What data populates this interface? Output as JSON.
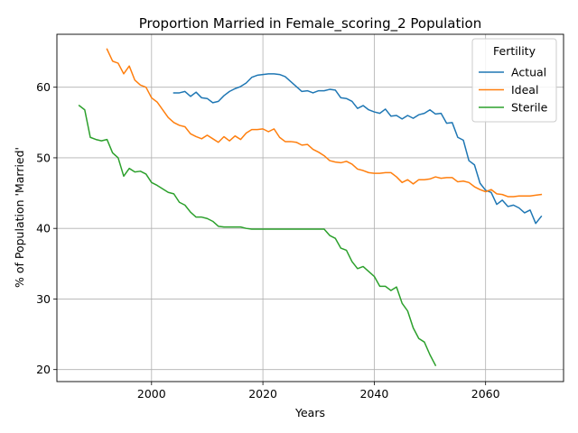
{
  "chart_data": {
    "type": "line",
    "title": "Proportion Married in Female_scoring_2 Population",
    "xlabel": "Years",
    "ylabel": "% of Population 'Married'",
    "xlim": [
      1983,
      2074
    ],
    "ylim": [
      18.3,
      67.5
    ],
    "xticks": [
      2000,
      2020,
      2040,
      2060
    ],
    "yticks": [
      20,
      30,
      40,
      50,
      60
    ],
    "grid": true,
    "legend": {
      "title": "Fertility",
      "placement": "top-right"
    },
    "series": [
      {
        "name": "Actual",
        "color": "#1f77b4",
        "x": [
          2004,
          2005,
          2006,
          2007,
          2008,
          2009,
          2010,
          2011,
          2012,
          2013,
          2014,
          2015,
          2016,
          2017,
          2018,
          2019,
          2020,
          2021,
          2022,
          2023,
          2024,
          2025,
          2026,
          2027,
          2028,
          2029,
          2030,
          2031,
          2032,
          2033,
          2034,
          2035,
          2036,
          2037,
          2038,
          2039,
          2040,
          2041,
          2042,
          2043,
          2044,
          2045,
          2046,
          2047,
          2048,
          2049,
          2050,
          2051,
          2052,
          2053,
          2054,
          2055,
          2056,
          2057,
          2058,
          2059,
          2060,
          2061,
          2062,
          2063,
          2064,
          2065,
          2066,
          2067,
          2068,
          2069,
          2070
        ],
        "y": [
          59.2,
          59.2,
          59.4,
          58.7,
          59.3,
          58.5,
          58.4,
          57.8,
          58.0,
          58.8,
          59.4,
          59.8,
          60.1,
          60.6,
          61.4,
          61.7,
          61.8,
          61.9,
          61.9,
          61.8,
          61.5,
          60.8,
          60.1,
          59.4,
          59.5,
          59.2,
          59.5,
          59.5,
          59.7,
          59.6,
          58.5,
          58.4,
          58.0,
          57.0,
          57.4,
          56.8,
          56.5,
          56.3,
          56.9,
          55.9,
          56.0,
          55.5,
          56.0,
          55.6,
          56.1,
          56.3,
          56.8,
          56.2,
          56.3,
          54.9,
          55.0,
          52.9,
          52.5,
          49.6,
          49.0,
          46.4,
          45.4,
          45.1,
          43.4,
          44.0,
          43.1,
          43.3,
          42.9,
          42.2,
          42.6,
          40.7,
          41.7
        ]
      },
      {
        "name": "Ideal",
        "color": "#ff7f0e",
        "x": [
          1992,
          1993,
          1994,
          1995,
          1996,
          1997,
          1998,
          1999,
          2000,
          2001,
          2002,
          2003,
          2004,
          2005,
          2006,
          2007,
          2008,
          2009,
          2010,
          2011,
          2012,
          2013,
          2014,
          2015,
          2016,
          2017,
          2018,
          2019,
          2020,
          2021,
          2022,
          2023,
          2024,
          2025,
          2026,
          2027,
          2028,
          2029,
          2030,
          2031,
          2032,
          2033,
          2034,
          2035,
          2036,
          2037,
          2038,
          2039,
          2040,
          2041,
          2042,
          2043,
          2044,
          2045,
          2046,
          2047,
          2048,
          2049,
          2050,
          2051,
          2052,
          2053,
          2054,
          2055,
          2056,
          2057,
          2058,
          2059,
          2060,
          2061,
          2062,
          2063,
          2064,
          2065,
          2066,
          2067,
          2068,
          2069,
          2070
        ],
        "y": [
          65.4,
          63.7,
          63.4,
          61.9,
          63.0,
          61.0,
          60.3,
          60.0,
          58.5,
          57.9,
          56.8,
          55.7,
          55.0,
          54.6,
          54.4,
          53.4,
          53.0,
          52.7,
          53.2,
          52.7,
          52.2,
          53.0,
          52.4,
          53.1,
          52.6,
          53.5,
          54.0,
          54.0,
          54.1,
          53.7,
          54.1,
          52.9,
          52.3,
          52.3,
          52.2,
          51.8,
          51.9,
          51.2,
          50.8,
          50.3,
          49.6,
          49.4,
          49.3,
          49.5,
          49.1,
          48.4,
          48.2,
          47.9,
          47.8,
          47.8,
          47.9,
          47.9,
          47.3,
          46.5,
          46.9,
          46.3,
          46.9,
          46.9,
          47.0,
          47.3,
          47.1,
          47.2,
          47.2,
          46.6,
          46.7,
          46.5,
          45.9,
          45.5,
          45.2,
          45.5,
          44.9,
          44.8,
          44.5,
          44.5,
          44.6,
          44.6,
          44.6,
          44.7,
          44.8
        ]
      },
      {
        "name": "Sterile",
        "color": "#2ca02c",
        "x": [
          1987,
          1988,
          1989,
          1990,
          1991,
          1992,
          1993,
          1994,
          1995,
          1996,
          1997,
          1998,
          1999,
          2000,
          2001,
          2002,
          2003,
          2004,
          2005,
          2006,
          2007,
          2008,
          2009,
          2010,
          2011,
          2012,
          2013,
          2014,
          2015,
          2016,
          2017,
          2018,
          2019,
          2020,
          2021,
          2022,
          2023,
          2024,
          2025,
          2026,
          2027,
          2028,
          2029,
          2030,
          2031,
          2032,
          2033,
          2034,
          2035,
          2036,
          2037,
          2038,
          2039,
          2040,
          2041,
          2042,
          2043,
          2044,
          2045,
          2046,
          2047,
          2048,
          2049,
          2050,
          2051
        ],
        "y": [
          57.4,
          56.8,
          52.9,
          52.6,
          52.4,
          52.6,
          50.7,
          50.0,
          47.4,
          48.5,
          48.0,
          48.1,
          47.7,
          46.5,
          46.1,
          45.6,
          45.1,
          44.9,
          43.7,
          43.3,
          42.3,
          41.6,
          41.6,
          41.4,
          41.0,
          40.3,
          40.2,
          40.2,
          40.2,
          40.2,
          40.0,
          39.9,
          39.9,
          39.9,
          39.9,
          39.9,
          39.9,
          39.9,
          39.9,
          39.9,
          39.9,
          39.9,
          39.9,
          39.9,
          39.9,
          39.0,
          38.6,
          37.2,
          36.9,
          35.3,
          34.3,
          34.6,
          33.9,
          33.2,
          31.8,
          31.8,
          31.2,
          31.7,
          29.4,
          28.3,
          25.9,
          24.4,
          23.9,
          22.1,
          20.6
        ]
      }
    ]
  }
}
